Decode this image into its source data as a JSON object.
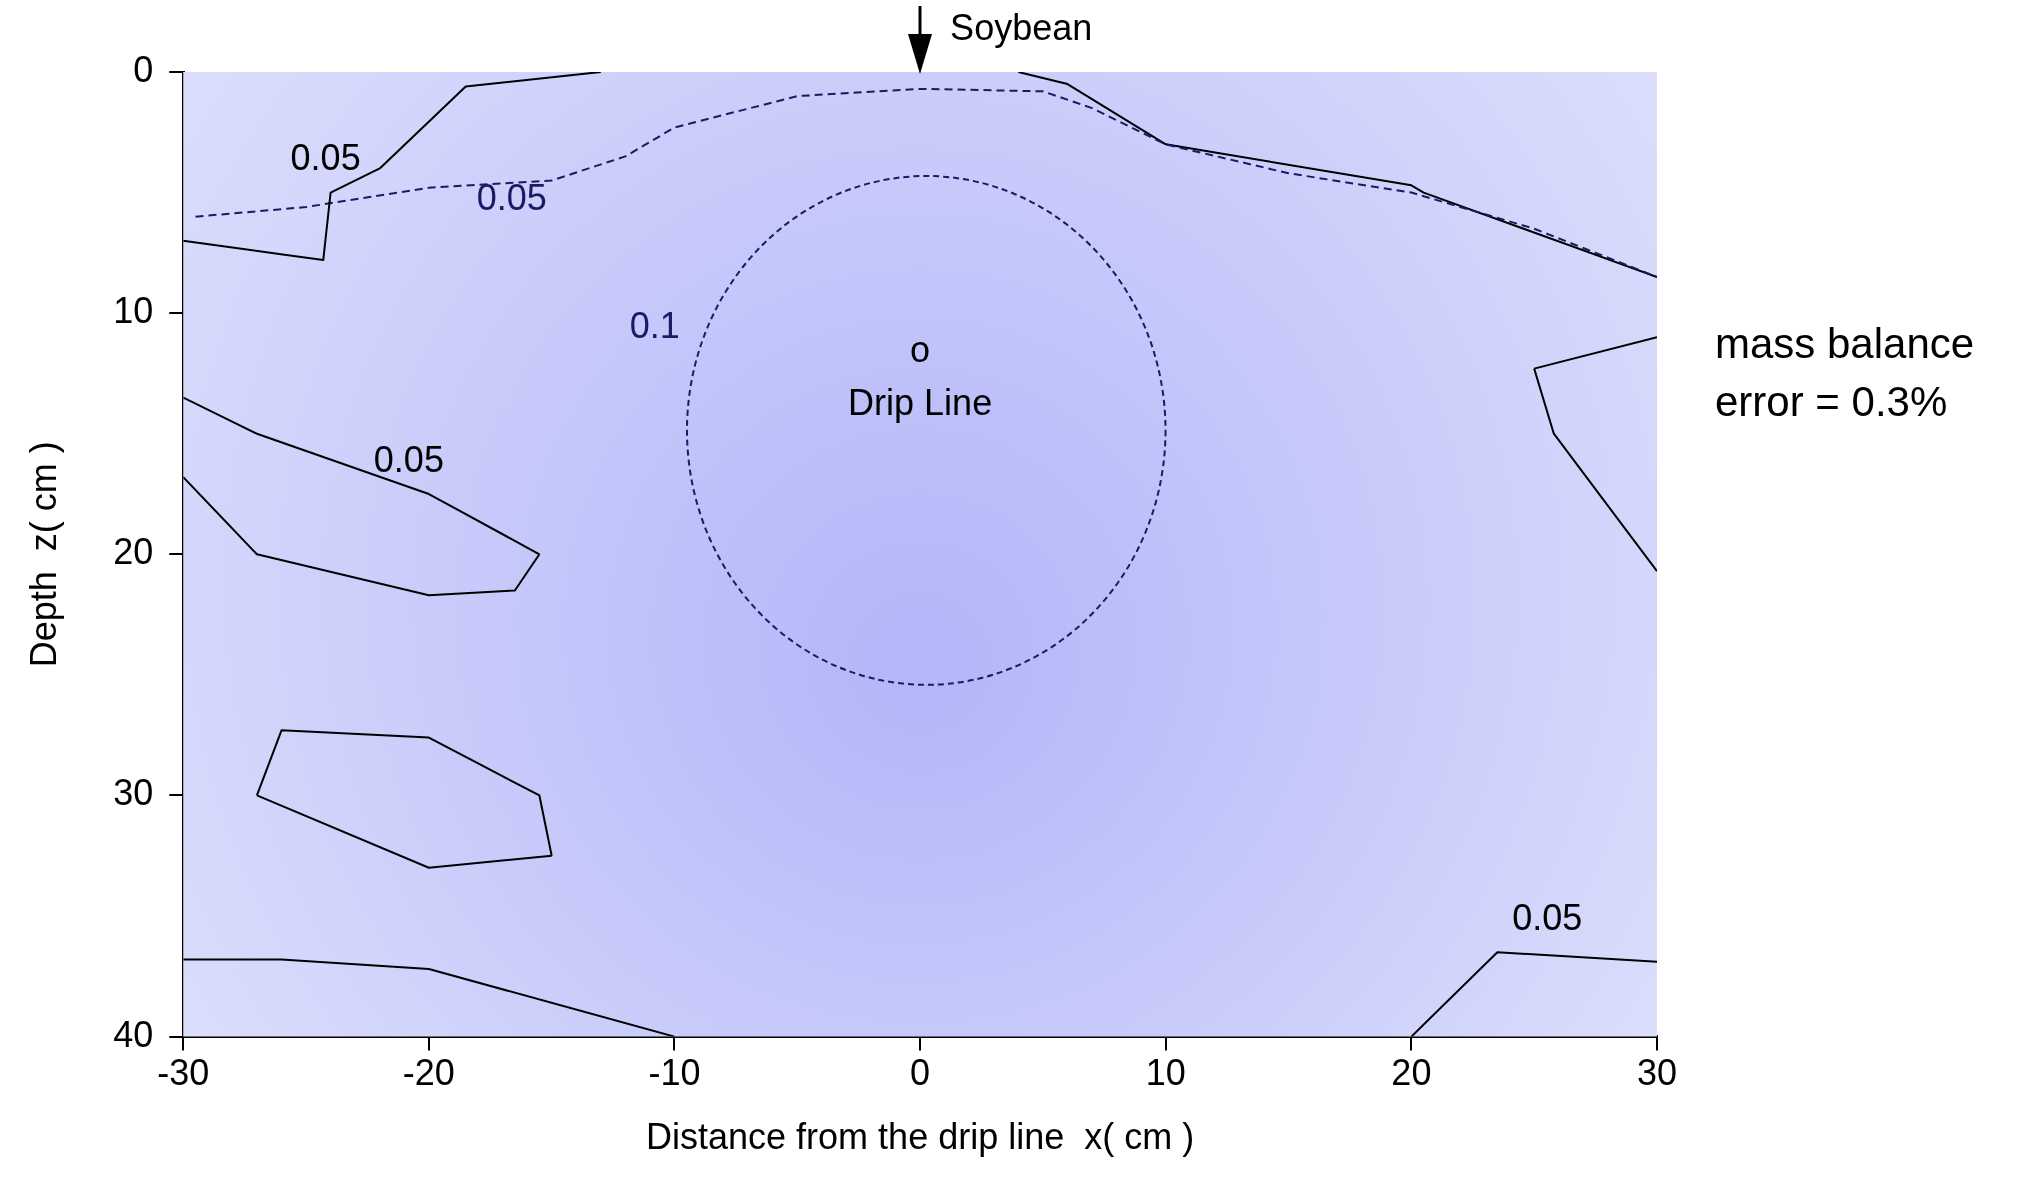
{
  "chart_data": {
    "type": "line",
    "xlabel": "Distance from the drip line  x( cm )",
    "ylabel": "Depth  z( cm )",
    "xlim": [
      -30,
      30
    ],
    "xticks": [
      -30,
      -20,
      -10,
      0,
      10,
      20,
      30
    ],
    "ylim": [
      40,
      0
    ],
    "yticks": [
      0,
      10,
      20,
      30,
      40
    ],
    "grid": false,
    "legend": false,
    "marker": "none",
    "series": [
      {
        "name": "0.05",
        "color": "#000000",
        "line_style": "solid",
        "x": [
          -30,
          -24.3,
          -24,
          -22,
          -18.5,
          -13
        ],
        "values": [
          7,
          7.8,
          5,
          4,
          0.6,
          0
        ]
      },
      {
        "name": "0.05",
        "color": "#1a1a66",
        "line_style": "dashed",
        "x": [
          -29.5,
          -25,
          -20,
          -15,
          -12,
          -10,
          -5,
          0,
          5,
          7,
          10,
          15,
          20,
          25,
          30
        ],
        "values": [
          6,
          5.6,
          4.8,
          4.5,
          3.5,
          2.3,
          1,
          0.7,
          0.8,
          1.5,
          3,
          4.2,
          5,
          6.5,
          8.5
        ]
      },
      {
        "color": "#000000",
        "line_style": "solid",
        "x": [
          4,
          6,
          10,
          20,
          20.5,
          30
        ],
        "values": [
          0,
          0.5,
          3,
          4.7,
          5,
          8.5
        ]
      },
      {
        "color": "#000000",
        "line_style": "solid",
        "x": [
          25,
          30
        ],
        "values": [
          12.3,
          11
        ]
      },
      {
        "color": "#000000",
        "line_style": "solid",
        "x": [
          25,
          25.8,
          30
        ],
        "values": [
          12.3,
          15,
          20.7
        ]
      },
      {
        "name": "0.05",
        "color": "#000000",
        "line_style": "solid",
        "x": [
          -30,
          -27,
          -20,
          -15.5
        ],
        "values": [
          13.5,
          15,
          17.5,
          20
        ]
      },
      {
        "color": "#000000",
        "line_style": "solid",
        "x": [
          -30,
          -27,
          -20,
          -16.5,
          -15.5
        ],
        "values": [
          16.8,
          20,
          21.7,
          21.5,
          20
        ]
      },
      {
        "color": "#000000",
        "line_style": "solid",
        "x": [
          -27,
          -26,
          -20,
          -15.5,
          -15
        ],
        "values": [
          30,
          27.3,
          27.6,
          30,
          32.5
        ]
      },
      {
        "color": "#000000",
        "line_style": "solid",
        "x": [
          -27,
          -20,
          -15
        ],
        "values": [
          30,
          33,
          32.5
        ]
      },
      {
        "color": "#000000",
        "line_style": "solid",
        "x": [
          -30,
          -26,
          -20,
          -10
        ],
        "values": [
          36.8,
          36.8,
          37.2,
          40
        ]
      },
      {
        "name": "0.05",
        "color": "#000000",
        "line_style": "solid",
        "x": [
          20,
          23.5,
          30
        ],
        "values": [
          40,
          36.5,
          36.9
        ]
      }
    ],
    "annotations": [
      "Soybean",
      "o",
      "Drip Line",
      "0.1",
      "mass balance error = 0.3%"
    ]
  }
}
